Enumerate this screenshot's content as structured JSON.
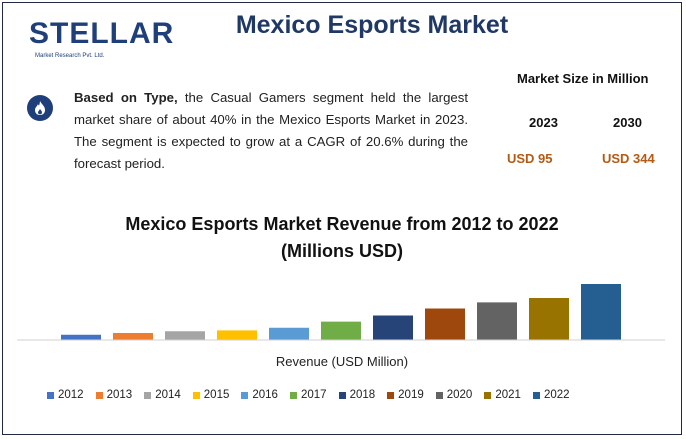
{
  "header": {
    "logo_word": "STELLAR",
    "logo_sub": "Market Research Pvt. Ltd.",
    "title": "Mexico Esports Market"
  },
  "summary": {
    "bold_lead": "Based on Type,",
    "text": " the Casual Gamers segment held the largest market share of about 40% in the Mexico Esports Market in 2023. The segment is expected to grow at a CAGR of 20.6% during the forecast period.",
    "icon": "flame-icon"
  },
  "market_size": {
    "title": "Market Size in Million",
    "year_1": "2023",
    "year_2": "2030",
    "value_1": "USD 95",
    "value_2": "USD 344"
  },
  "chart_data": {
    "type": "bar",
    "title": "Mexico Esports Market Revenue from 2012 to 2022",
    "subtitle": "(Millions USD)",
    "xlabel": "Revenue (USD Million)",
    "ylabel": "",
    "grid": false,
    "legend_position": "bottom",
    "categories": [
      "2012",
      "2013",
      "2014",
      "2015",
      "2016",
      "2017",
      "2018",
      "2019",
      "2020",
      "2021",
      "2022"
    ],
    "values": [
      6,
      8,
      10,
      11,
      14,
      21,
      28,
      36,
      43,
      48,
      64
    ],
    "ylim": [
      0,
      64
    ],
    "colors": [
      "#4472c4",
      "#ed7d31",
      "#a5a5a5",
      "#ffc000",
      "#5b9bd5",
      "#70ad47",
      "#264478",
      "#9e480e",
      "#636363",
      "#997300",
      "#255e91"
    ]
  }
}
